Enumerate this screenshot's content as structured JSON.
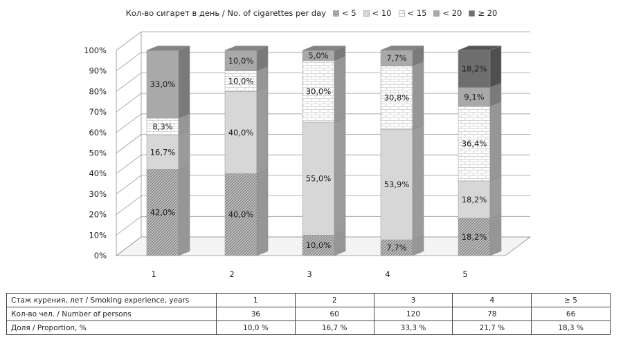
{
  "chart_data": {
    "type": "bar",
    "stacked": true,
    "percent_stacked": true,
    "three_d": true,
    "legend_title": "Кол-во сигарет в день / No. of cigarettes per day",
    "legend_position": "top",
    "categories": [
      "1",
      "2",
      "3",
      "4",
      "5"
    ],
    "series": [
      {
        "name": "< 5",
        "values": [
          42.0,
          40.0,
          10.0,
          7.7,
          18.2
        ],
        "labels": [
          "42,0%",
          "40,0%",
          "10,0%",
          "7,7%",
          "18,2%"
        ],
        "pattern": "crosshatch",
        "color": "#b8b8b8"
      },
      {
        "name": "< 10",
        "values": [
          16.7,
          40.0,
          55.0,
          53.9,
          18.2
        ],
        "labels": [
          "16,7%",
          "40,0%",
          "55,0%",
          "53,9%",
          "18,2%"
        ],
        "pattern": "solid",
        "color": "#d7d7d7"
      },
      {
        "name": "< 15",
        "values": [
          8.3,
          10.0,
          30.0,
          30.8,
          36.4
        ],
        "labels": [
          "8,3%",
          "10,0%",
          "30,0%",
          "30,8%",
          "36,4%"
        ],
        "pattern": "brick",
        "color": "#ffffff"
      },
      {
        "name": "< 20",
        "values": [
          33.0,
          10.0,
          5.0,
          7.7,
          9.1
        ],
        "labels": [
          "33,0%",
          "10,0%",
          "5,0%",
          "7,7%",
          "9,1%"
        ],
        "pattern": "solid",
        "color": "#a9a9a9"
      },
      {
        "name": "≥ 20",
        "values": [
          0,
          0,
          0,
          0,
          18.2
        ],
        "labels": [
          "",
          "",
          "",
          "",
          "18,2%"
        ],
        "pattern": "solid",
        "color": "#6e6e6e"
      }
    ],
    "ylim": [
      0,
      100
    ],
    "yticks": [
      "0%",
      "10%",
      "20%",
      "30%",
      "40%",
      "50%",
      "60%",
      "70%",
      "80%",
      "90%",
      "100%"
    ],
    "grid": true
  },
  "table": {
    "rows": [
      {
        "label": "Стаж курения, лет / Smoking experience, years",
        "values": [
          "1",
          "2",
          "3",
          "4",
          "≥ 5"
        ]
      },
      {
        "label": "Кол-во чел. / Number of persons",
        "values": [
          "36",
          "60",
          "120",
          "78",
          "66"
        ]
      },
      {
        "label": "Доля / Proportion, %",
        "values": [
          "10,0 %",
          "16,7 %",
          "33,3 %",
          "21,7 %",
          "18,3 %"
        ]
      }
    ]
  }
}
